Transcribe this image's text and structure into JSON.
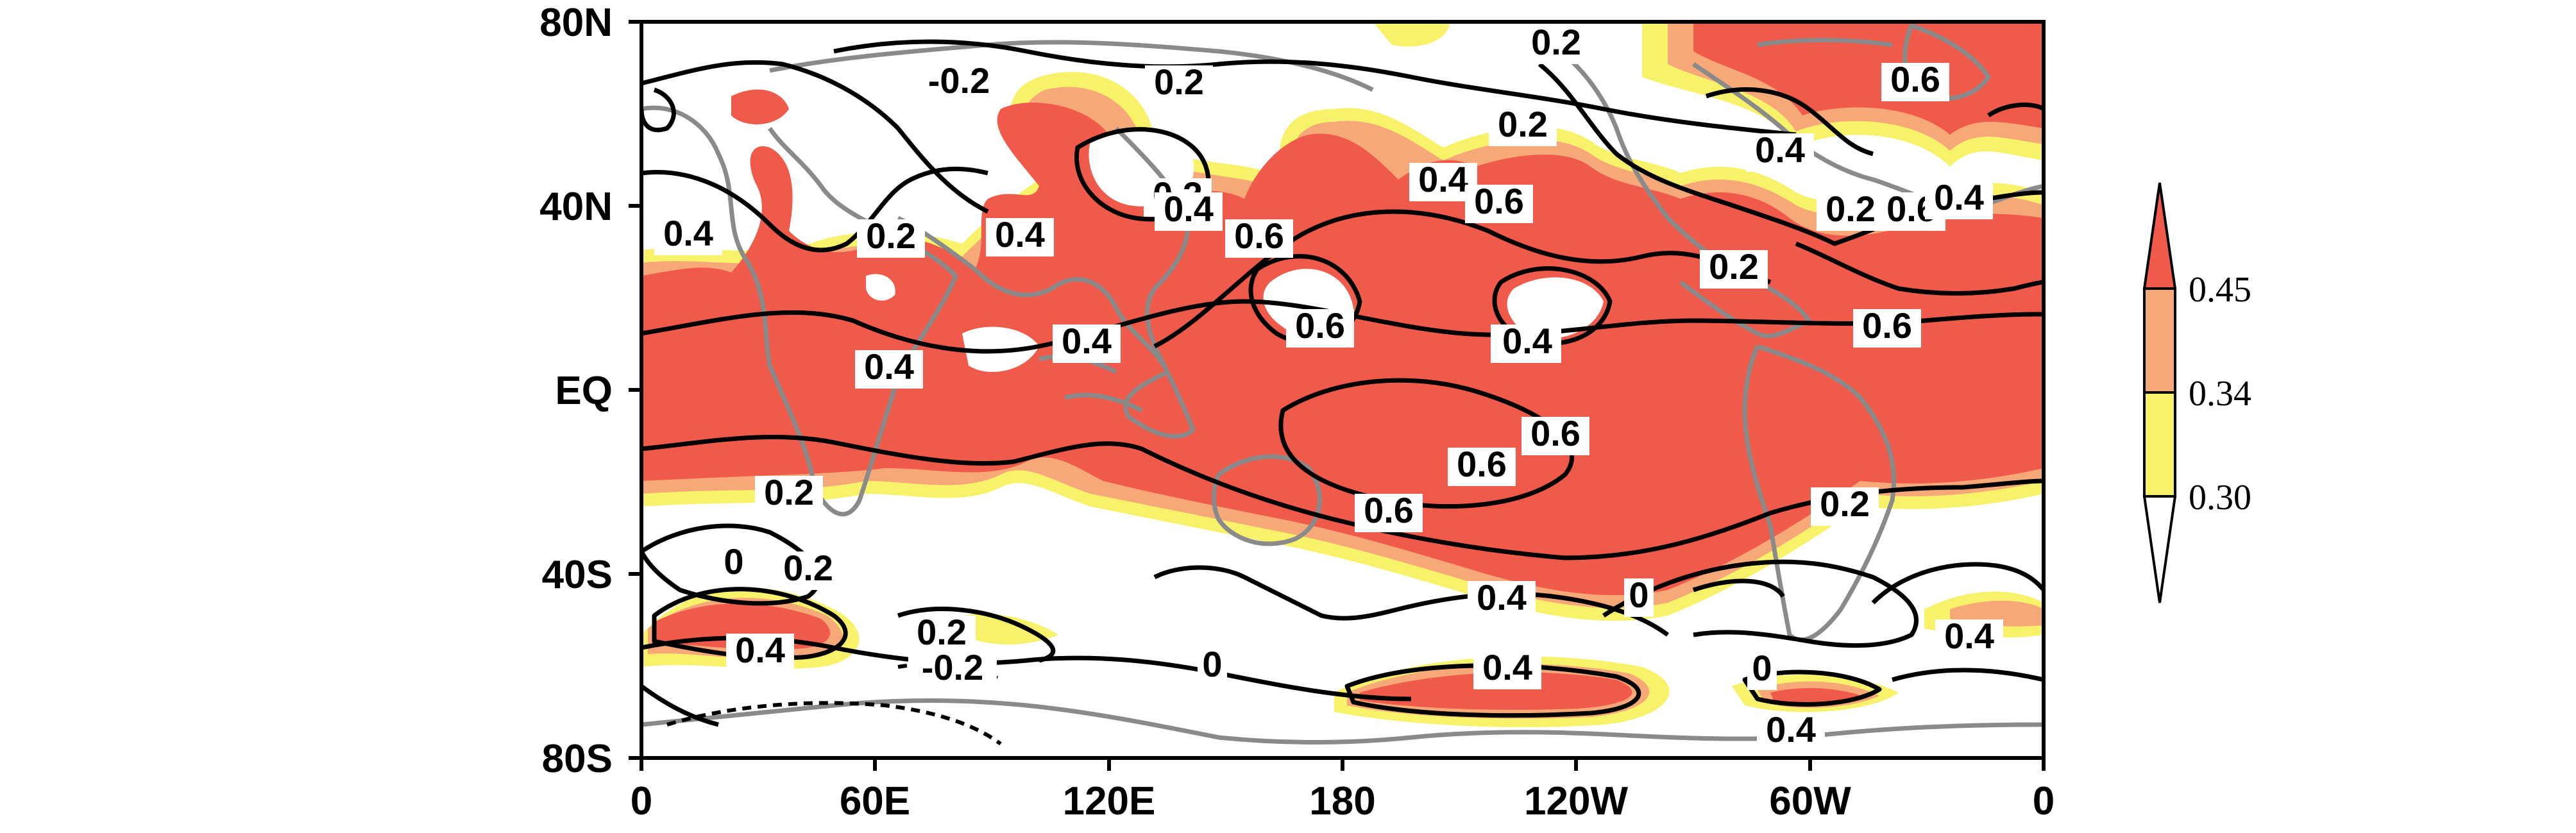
{
  "axes": {
    "y_ticks": [
      "80N",
      "40N",
      "EQ",
      "40S",
      "80S"
    ],
    "x_ticks": [
      "0",
      "60E",
      "120E",
      "180",
      "120W",
      "60W",
      "0"
    ]
  },
  "colorbar": {
    "levels": [
      "0.45",
      "0.34",
      "0.30"
    ],
    "colors": [
      "#ef5a4b",
      "#f7a878",
      "#f7f26a",
      "#ffffff"
    ]
  },
  "contour_labels": [
    {
      "text": "0.2"
    },
    {
      "text": "-0.2"
    },
    {
      "text": "0.2"
    },
    {
      "text": "0.2"
    },
    {
      "text": "0.6"
    },
    {
      "text": "0.2"
    },
    {
      "text": "0.4"
    },
    {
      "text": "0.2"
    },
    {
      "text": "0.2"
    },
    {
      "text": "0.4"
    },
    {
      "text": "0.4"
    },
    {
      "text": "0.4"
    },
    {
      "text": "0.6"
    },
    {
      "text": "0.6"
    },
    {
      "text": "0.2"
    },
    {
      "text": "0.6"
    },
    {
      "text": "0.4"
    },
    {
      "text": "0.4"
    },
    {
      "text": "0.6"
    },
    {
      "text": "0.4"
    },
    {
      "text": "0.4"
    },
    {
      "text": "0.6"
    },
    {
      "text": "0.6"
    },
    {
      "text": "0.2"
    },
    {
      "text": "0.4"
    },
    {
      "text": "0.2"
    },
    {
      "text": "0.6"
    },
    {
      "text": "0.6"
    },
    {
      "text": "0.6"
    },
    {
      "text": "0.2"
    },
    {
      "text": "0.2"
    },
    {
      "text": "0"
    },
    {
      "text": "0.4"
    },
    {
      "text": "0"
    },
    {
      "text": "0.2"
    },
    {
      "text": "-0.2"
    },
    {
      "text": "0.4"
    },
    {
      "text": "0.4"
    },
    {
      "text": "0.4"
    },
    {
      "text": "0"
    },
    {
      "text": "0.4"
    },
    {
      "text": "0"
    }
  ]
}
